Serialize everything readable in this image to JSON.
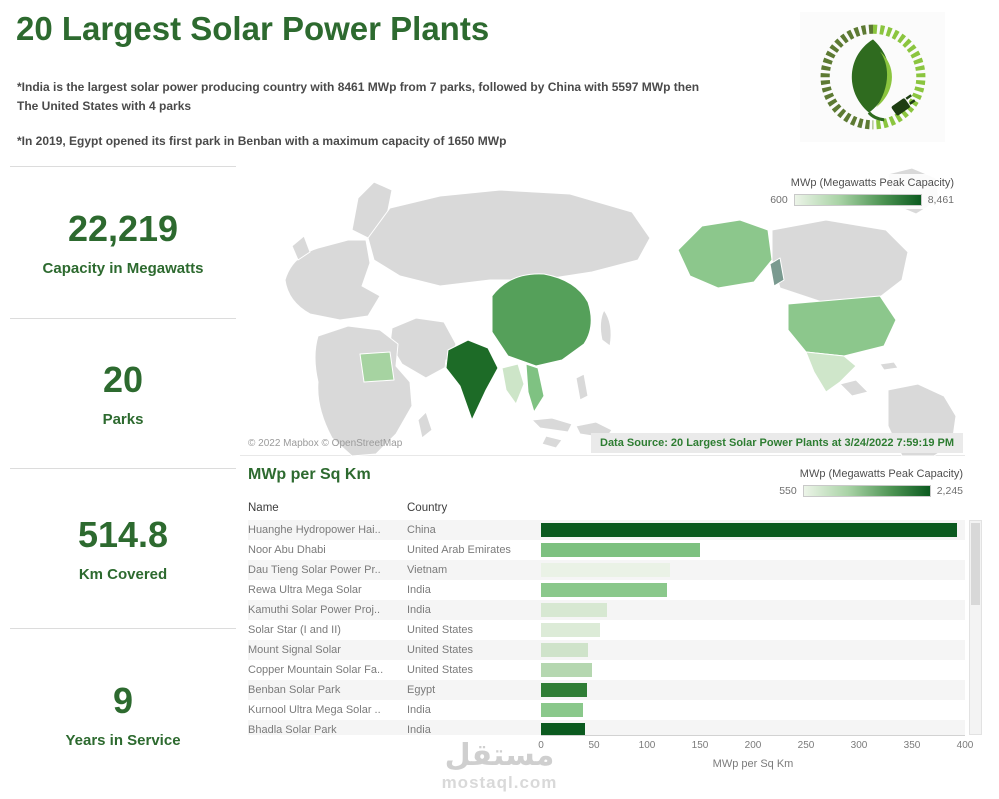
{
  "header": {
    "title": "20 Largest Solar Power Plants",
    "note1": "*India is the largest solar power producing country with 8461 MWp from 7 parks, followed by China with 5597 MWp then The United States with 4 parks",
    "note2": "*In 2019, Egypt opened its first park in Benban with a maximum capacity of 1650 MWp"
  },
  "kpis": [
    {
      "value": "22,219",
      "label": "Capacity in Megawatts"
    },
    {
      "value": "20",
      "label": "Parks"
    },
    {
      "value": "514.8",
      "label": "Km Covered"
    },
    {
      "value": "9",
      "label": "Years in Service"
    }
  ],
  "map": {
    "attribution": "© 2022 Mapbox © OpenStreetMap",
    "data_source": "Data Source: 20 Largest Solar Power Plants at 3/24/2022 7:59:19 PM",
    "country_colors": {
      "india": "#1d6b27",
      "china": "#55a05a",
      "united-states": "#8cc78c",
      "mexico": "#cfe6ca",
      "egypt": "#a6d3a1",
      "vietnam": "#7fc282",
      "thailand": "#cde5c8",
      "united-arab-emirates": "#7fc282",
      "pacific-sliver": "#7a9a90",
      "default": "#d9d9d9"
    }
  },
  "watermark": {
    "line1": "مستقل",
    "line2": "mostaql.com"
  },
  "chart_data": [
    {
      "type": "choropleth_map",
      "legend_title": "MWp (Megawatts Peak Capacity)",
      "color_scale": {
        "min": 600,
        "max": 8461,
        "min_label": "600",
        "max_label": "8,461",
        "low_color": "#ecf4e8",
        "high_color": "#0b5a1f"
      },
      "countries": [
        {
          "name": "India",
          "mwp": 8461,
          "shade": "dark"
        },
        {
          "name": "China",
          "mwp": 5597,
          "shade": "medium"
        },
        {
          "name": "United States",
          "shade": "light"
        },
        {
          "name": "Mexico",
          "shade": "very-light"
        },
        {
          "name": "Egypt",
          "mwp": 1650,
          "shade": "light"
        },
        {
          "name": "Vietnam",
          "shade": "medium-light"
        },
        {
          "name": "United Arab Emirates",
          "shade": "medium-light"
        }
      ]
    },
    {
      "type": "bar",
      "title": "MWp per Sq Km",
      "orientation": "horizontal",
      "xlabel": "MWp per Sq Km",
      "xlim": [
        0,
        400
      ],
      "xticks": [
        0,
        50,
        100,
        150,
        200,
        250,
        300,
        350,
        400
      ],
      "columns": [
        "Name",
        "Country"
      ],
      "color_legend": {
        "title": "MWp (Megawatts Peak Capacity)",
        "min_label": "550",
        "max_label": "2,245"
      },
      "rows": [
        {
          "name": "Huanghe Hydropower Hai..",
          "country": "China",
          "value": 392,
          "bar_color": "#0b5a1f"
        },
        {
          "name": "Noor Abu Dhabi",
          "country": "United Arab Emirates",
          "value": 150,
          "bar_color": "#7dc180"
        },
        {
          "name": "Dau Tieng Solar Power Pr..",
          "country": "Vietnam",
          "value": 122,
          "bar_color": "#eaf2e6"
        },
        {
          "name": "Rewa Ultra Mega Solar",
          "country": "India",
          "value": 119,
          "bar_color": "#8ac88b"
        },
        {
          "name": "Kamuthi Solar Power Proj..",
          "country": "India",
          "value": 62,
          "bar_color": "#d7e8d2"
        },
        {
          "name": "Solar Star (I and II)",
          "country": "United States",
          "value": 56,
          "bar_color": "#dcebd7"
        },
        {
          "name": "Mount Signal Solar",
          "country": "United States",
          "value": 44,
          "bar_color": "#cfe3ca"
        },
        {
          "name": "Copper Mountain Solar Fa..",
          "country": "United States",
          "value": 48,
          "bar_color": "#b5d7b0"
        },
        {
          "name": "Benban Solar Park",
          "country": "Egypt",
          "value": 43,
          "bar_color": "#2f7d35"
        },
        {
          "name": "Kurnool Ultra Mega Solar ..",
          "country": "India",
          "value": 40,
          "bar_color": "#8ac88b"
        },
        {
          "name": "Bhadla Solar Park",
          "country": "India",
          "value": 41,
          "bar_color": "#0b5a1f"
        }
      ]
    }
  ]
}
